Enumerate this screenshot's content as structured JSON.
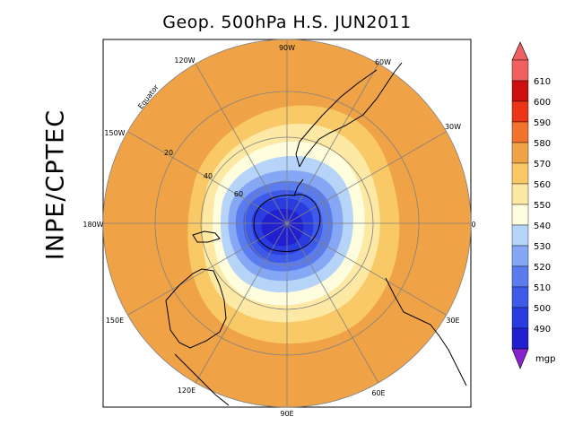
{
  "title": "Geop. 500hPa H.S. JUN2011",
  "side_label": "INPE/CPTEC",
  "map": {
    "projection": "south polar stereographic",
    "equator_label": "Equator",
    "longitude_labels": [
      "90W",
      "60W",
      "30W",
      "0",
      "30E",
      "60E",
      "90E",
      "120E",
      "150E",
      "180W",
      "150W",
      "120W"
    ],
    "latitude_labels": [
      "20",
      "40",
      "60"
    ],
    "gridline_color": "#808080",
    "coastline_color": "#000000"
  },
  "colorbar": {
    "unit": "mgp",
    "levels": [
      "490",
      "500",
      "510",
      "520",
      "530",
      "540",
      "550",
      "560",
      "570",
      "580",
      "590",
      "600",
      "610"
    ],
    "colors": [
      "#2020d0",
      "#2a3ce0",
      "#3d5ae8",
      "#5b7cef",
      "#86a7f3",
      "#b5d4f7",
      "#fefddd",
      "#fde9a4",
      "#f9c968",
      "#f0a346",
      "#f2732e",
      "#ea3518",
      "#cc1010",
      "#f06060"
    ],
    "under_color": "#8822cc",
    "over_color": "#f06060"
  }
}
